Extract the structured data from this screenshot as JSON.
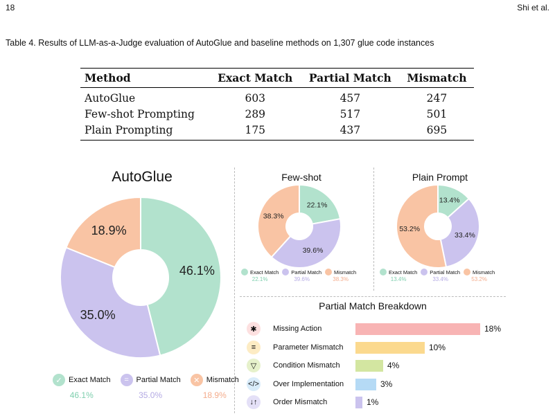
{
  "header": {
    "page_number": "18",
    "running_head": "Shi et al."
  },
  "table": {
    "caption": "Table 4.  Results of LLM-as-a-Judge evaluation of AutoGlue and baseline methods on 1,307 glue code instances",
    "headers": [
      "Method",
      "Exact Match",
      "Partial Match",
      "Mismatch"
    ],
    "rows": [
      [
        "AutoGlue",
        "603",
        "457",
        "247"
      ],
      [
        "Few-shot Prompting",
        "289",
        "517",
        "501"
      ],
      [
        "Plain Prompting",
        "175",
        "437",
        "695"
      ]
    ]
  },
  "colors": {
    "exact": "#b2e2cd",
    "partial": "#cbc3ee",
    "mismatch": "#f9c4a4",
    "exact_text": "#7fcfae",
    "partial_text": "#b3a9e3",
    "mismatch_text": "#f4ac8c"
  },
  "chart_data": [
    {
      "type": "pie",
      "title": "AutoGlue",
      "categories": [
        "Exact Match",
        "Partial Match",
        "Mismatch"
      ],
      "values": [
        46.1,
        35.0,
        18.9
      ],
      "labels": [
        "46.1%",
        "35.0%",
        "18.9%"
      ]
    },
    {
      "type": "pie",
      "title": "Few-shot",
      "categories": [
        "Exact Match",
        "Partial Match",
        "Mismatch"
      ],
      "values": [
        22.1,
        39.6,
        38.3
      ],
      "labels": [
        "22.1%",
        "39.6%",
        "38.3%"
      ]
    },
    {
      "type": "pie",
      "title": "Plain Prompt",
      "categories": [
        "Exact Match",
        "Partial Match",
        "Mismatch"
      ],
      "values": [
        13.4,
        33.4,
        53.2
      ],
      "labels": [
        "13.4%",
        "33.4%",
        "53.2%"
      ]
    },
    {
      "type": "bar",
      "title": "Partial Match Breakdown",
      "categories": [
        "Missing Action",
        "Parameter Mismatch",
        "Condition Mismatch",
        "Over Implementation",
        "Order Mismatch"
      ],
      "values": [
        18,
        10,
        4,
        3,
        1
      ],
      "labels": [
        "18%",
        "10%",
        "4%",
        "3%",
        "1%"
      ],
      "colors": [
        "#f8b4b4",
        "#fbd98e",
        "#d3e6a1",
        "#b5daf5",
        "#cbc3ee"
      ]
    }
  ],
  "legend_names": [
    "Exact Match",
    "Partial Match",
    "Mismatch"
  ]
}
